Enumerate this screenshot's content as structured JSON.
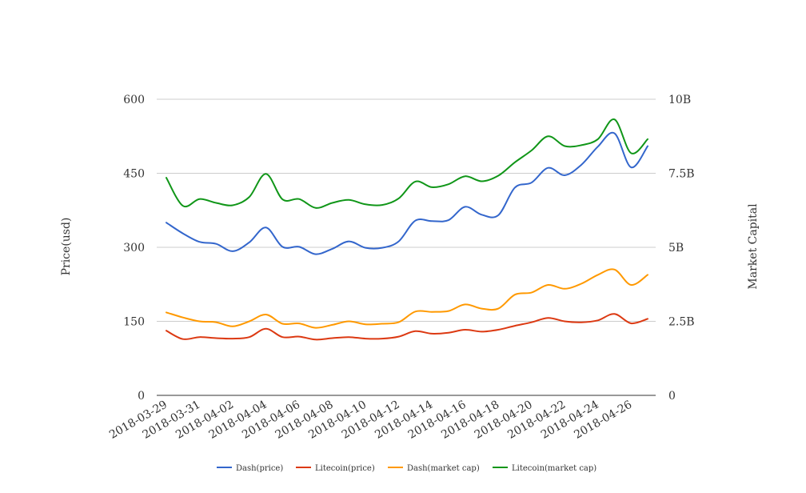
{
  "chart_data": {
    "type": "line",
    "title": "",
    "x_tick_labels": [
      "2018-03-29",
      "2018-03-31",
      "2018-04-02",
      "2018-04-04",
      "2018-04-06",
      "2018-04-08",
      "2018-04-10",
      "2018-04-12",
      "2018-04-14",
      "2018-04-16",
      "2018-04-18",
      "2018-04-20",
      "2018-04-22",
      "2018-04-24",
      "2018-04-26"
    ],
    "x": [
      "2018-03-29",
      "2018-03-30",
      "2018-03-31",
      "2018-04-01",
      "2018-04-02",
      "2018-04-03",
      "2018-04-04",
      "2018-04-05",
      "2018-04-06",
      "2018-04-07",
      "2018-04-08",
      "2018-04-09",
      "2018-04-10",
      "2018-04-11",
      "2018-04-12",
      "2018-04-13",
      "2018-04-14",
      "2018-04-15",
      "2018-04-16",
      "2018-04-17",
      "2018-04-18",
      "2018-04-19",
      "2018-04-20",
      "2018-04-21",
      "2018-04-22",
      "2018-04-23",
      "2018-04-24",
      "2018-04-25",
      "2018-04-26",
      "2018-04-27"
    ],
    "y_left": {
      "label": "Price(usd)",
      "ylim": [
        0,
        600
      ],
      "ticks": [
        "0",
        "150",
        "300",
        "450",
        "600"
      ]
    },
    "y_right": {
      "label": "Market Capital",
      "ylim": [
        0,
        10000000000
      ],
      "ticks": [
        "0",
        "2.5B",
        "5B",
        "7.5B",
        "10B"
      ]
    },
    "grid": true,
    "legend_position": "bottom",
    "series": [
      {
        "name": "Dash(price)",
        "axis": "left",
        "color": "#3366cc",
        "values": [
          350,
          328,
          311,
          307,
          292,
          310,
          340,
          301,
          301,
          286,
          297,
          312,
          299,
          299,
          312,
          354,
          353,
          355,
          382,
          366,
          365,
          421,
          431,
          461,
          446,
          467,
          504,
          531,
          462,
          505
        ]
      },
      {
        "name": "Litecoin(price)",
        "axis": "left",
        "color": "#dc3912",
        "values": [
          131,
          114,
          118,
          116,
          115,
          118,
          135,
          118,
          119,
          113,
          116,
          118,
          115,
          115,
          119,
          130,
          125,
          127,
          133,
          129,
          133,
          141,
          148,
          157,
          150,
          148,
          152,
          165,
          146,
          155
        ]
      },
      {
        "name": "Dash(market cap)",
        "axis": "right",
        "color": "#ff9900",
        "values": [
          2800000000,
          2630000000,
          2500000000,
          2470000000,
          2330000000,
          2500000000,
          2730000000,
          2420000000,
          2430000000,
          2280000000,
          2380000000,
          2500000000,
          2400000000,
          2420000000,
          2470000000,
          2830000000,
          2820000000,
          2850000000,
          3070000000,
          2930000000,
          2930000000,
          3400000000,
          3470000000,
          3730000000,
          3600000000,
          3770000000,
          4070000000,
          4250000000,
          3730000000,
          4070000000
        ]
      },
      {
        "name": "Litecoin(market cap)",
        "axis": "right",
        "color": "#109618",
        "values": [
          7350000000,
          6400000000,
          6630000000,
          6500000000,
          6420000000,
          6700000000,
          7480000000,
          6620000000,
          6630000000,
          6330000000,
          6500000000,
          6600000000,
          6450000000,
          6430000000,
          6650000000,
          7220000000,
          7030000000,
          7130000000,
          7400000000,
          7230000000,
          7420000000,
          7870000000,
          8270000000,
          8750000000,
          8420000000,
          8450000000,
          8650000000,
          9320000000,
          8180000000,
          8650000000
        ]
      }
    ]
  }
}
